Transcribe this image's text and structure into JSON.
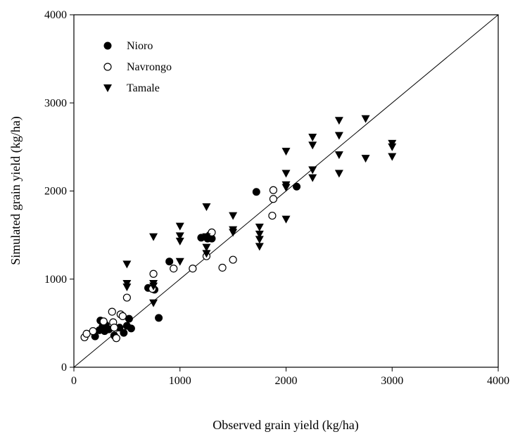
{
  "chart_data": {
    "type": "scatter",
    "title": "",
    "xlabel": "Observed grain yield (kg/ha)",
    "ylabel": "Simulated grain yield (kg/ha)",
    "xlim": [
      0,
      4000
    ],
    "ylim": [
      0,
      4000
    ],
    "x_ticks": [
      0,
      1000,
      2000,
      3000,
      4000
    ],
    "y_ticks": [
      0,
      1000,
      2000,
      3000,
      4000
    ],
    "grid": false,
    "legend_position": "top-left",
    "reference_line": "1:1",
    "series": [
      {
        "name": "Nioro",
        "marker": "filled-circle",
        "points": [
          [
            200,
            350
          ],
          [
            240,
            420
          ],
          [
            250,
            530
          ],
          [
            270,
            460
          ],
          [
            290,
            410
          ],
          [
            300,
            480
          ],
          [
            330,
            430
          ],
          [
            380,
            360
          ],
          [
            400,
            330
          ],
          [
            430,
            450
          ],
          [
            470,
            390
          ],
          [
            500,
            470
          ],
          [
            520,
            550
          ],
          [
            540,
            440
          ],
          [
            700,
            900
          ],
          [
            760,
            880
          ],
          [
            800,
            560
          ],
          [
            900,
            1200
          ],
          [
            1200,
            1470
          ],
          [
            1260,
            1460
          ],
          [
            1280,
            1500
          ],
          [
            1300,
            1460
          ],
          [
            1720,
            1990
          ],
          [
            2100,
            2050
          ]
        ]
      },
      {
        "name": "Navrongo",
        "marker": "open-circle",
        "points": [
          [
            100,
            340
          ],
          [
            120,
            380
          ],
          [
            180,
            410
          ],
          [
            280,
            520
          ],
          [
            360,
            630
          ],
          [
            370,
            510
          ],
          [
            380,
            450
          ],
          [
            400,
            330
          ],
          [
            440,
            600
          ],
          [
            460,
            580
          ],
          [
            500,
            790
          ],
          [
            740,
            890
          ],
          [
            750,
            1060
          ],
          [
            940,
            1120
          ],
          [
            1120,
            1120
          ],
          [
            1250,
            1260
          ],
          [
            1300,
            1530
          ],
          [
            1400,
            1130
          ],
          [
            1500,
            1220
          ],
          [
            1870,
            1720
          ],
          [
            1880,
            1910
          ],
          [
            1880,
            2010
          ]
        ]
      },
      {
        "name": "Tamale",
        "marker": "filled-triangle-down",
        "points": [
          [
            500,
            1170
          ],
          [
            500,
            950
          ],
          [
            500,
            910
          ],
          [
            750,
            1480
          ],
          [
            750,
            950
          ],
          [
            750,
            920
          ],
          [
            750,
            730
          ],
          [
            1000,
            1600
          ],
          [
            1000,
            1490
          ],
          [
            1000,
            1430
          ],
          [
            1000,
            1200
          ],
          [
            1250,
            1820
          ],
          [
            1250,
            1480
          ],
          [
            1250,
            1360
          ],
          [
            1250,
            1290
          ],
          [
            1500,
            1720
          ],
          [
            1500,
            1560
          ],
          [
            1500,
            1530
          ],
          [
            1750,
            1590
          ],
          [
            1750,
            1510
          ],
          [
            1750,
            1450
          ],
          [
            1750,
            1370
          ],
          [
            2000,
            2450
          ],
          [
            2000,
            2200
          ],
          [
            2000,
            2070
          ],
          [
            2000,
            2040
          ],
          [
            2000,
            1680
          ],
          [
            2250,
            2610
          ],
          [
            2250,
            2520
          ],
          [
            2250,
            2240
          ],
          [
            2250,
            2150
          ],
          [
            2500,
            2800
          ],
          [
            2500,
            2630
          ],
          [
            2500,
            2410
          ],
          [
            2500,
            2200
          ],
          [
            2750,
            2820
          ],
          [
            2750,
            2370
          ],
          [
            3000,
            2540
          ],
          [
            3000,
            2500
          ],
          [
            3000,
            2390
          ]
        ]
      }
    ]
  }
}
